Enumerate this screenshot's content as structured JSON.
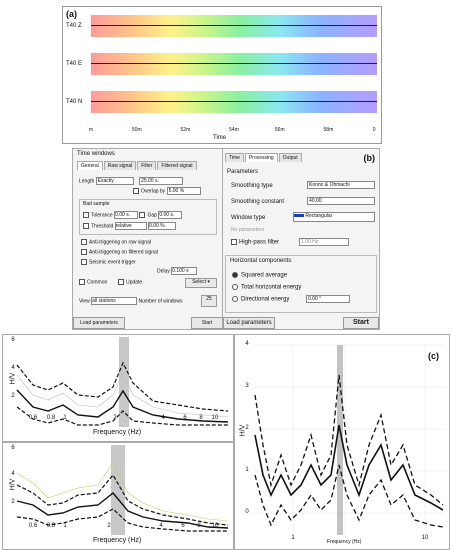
{
  "panel_a": {
    "label": "(a)",
    "traces": [
      "T40 Z",
      "T40 E",
      "T40 N"
    ],
    "time_ticks": [
      "m",
      "50m",
      "52m",
      "54m",
      "56m",
      "58m",
      "0"
    ],
    "time_label": "Time"
  },
  "time_windows": {
    "title": "Time windows",
    "tabs": [
      "General",
      "Raw signal",
      "Filter",
      "Filtered signal"
    ],
    "length_label": "Length",
    "length_mode": "Exactly",
    "length_value": "25.00 s.",
    "overlap_label": "Overlap by",
    "overlap_value": "5.00 %",
    "bad_sample_label": "Bad sample",
    "tolerance_label": "Tolerance",
    "tolerance_value": "0.00 s.",
    "gap_label": "Gap",
    "gap_value": "0.00 s.",
    "threshold_label": "Threshold",
    "threshold_mode": "relative",
    "threshold_value": "0.00 %",
    "anti_raw": "Anti-triggering on raw signal",
    "anti_filtered": "Anti-triggering on filtered signal",
    "seismic_event": "Seismic event trigger",
    "delay_label": "Delay",
    "delay_value": "0.100 s",
    "common_label": "Common",
    "update_label": "Update",
    "select_label": "Select",
    "view_label": "View",
    "view_value": "all stations",
    "number_label": "Number of windows",
    "number_value": "25",
    "load_label": "Load parameters",
    "start_label": "Start"
  },
  "processing": {
    "label": "(b)",
    "tabs": [
      "Time",
      "Processing",
      "Output"
    ],
    "parameters_label": "Parameters",
    "smoothing_type_label": "Smoothing type",
    "smoothing_type_value": "Konno & Ohmachi",
    "smoothing_const_label": "Smoothing constant",
    "smoothing_const_value": "40.00",
    "window_type_label": "Window type",
    "window_type_value": "Rectangular",
    "no_params": "No parameters",
    "highpass_label": "High-pass filter",
    "highpass_value": "1.00 Hz",
    "hcomp_label": "Horizontal components",
    "opt_squared": "Squared average",
    "opt_total": "Total horizontal energy",
    "opt_directional": "Directional energy",
    "directional_value": "0.00 °",
    "load_label": "Load parameters",
    "start_label": "Start"
  },
  "plot_top": {
    "ylabel": "H/V",
    "xlabel": "Frequency (Hz)",
    "yticks": [
      "6",
      "4",
      "2"
    ],
    "xticks": [
      "0.6",
      "0.8",
      "1",
      "2",
      "4",
      "6",
      "8",
      "10"
    ]
  },
  "plot_bottom": {
    "ylabel": "H/V",
    "xlabel": "Frequency (Hz)",
    "yticks": [
      "6",
      "4",
      "2"
    ],
    "xticks": [
      "0.6",
      "0.8",
      "1",
      "2",
      "4",
      "6",
      "8",
      "10"
    ]
  },
  "plot_c": {
    "label": "(c)",
    "ylabel": "H/V",
    "xlabel": "Frequency (Hz)",
    "yticks": [
      "4",
      "3",
      "2",
      "1",
      "0"
    ],
    "xticks": [
      "1",
      "10"
    ]
  },
  "colors": {
    "accent": "#1f3fbf",
    "peak_band": "#9a9a9a"
  }
}
